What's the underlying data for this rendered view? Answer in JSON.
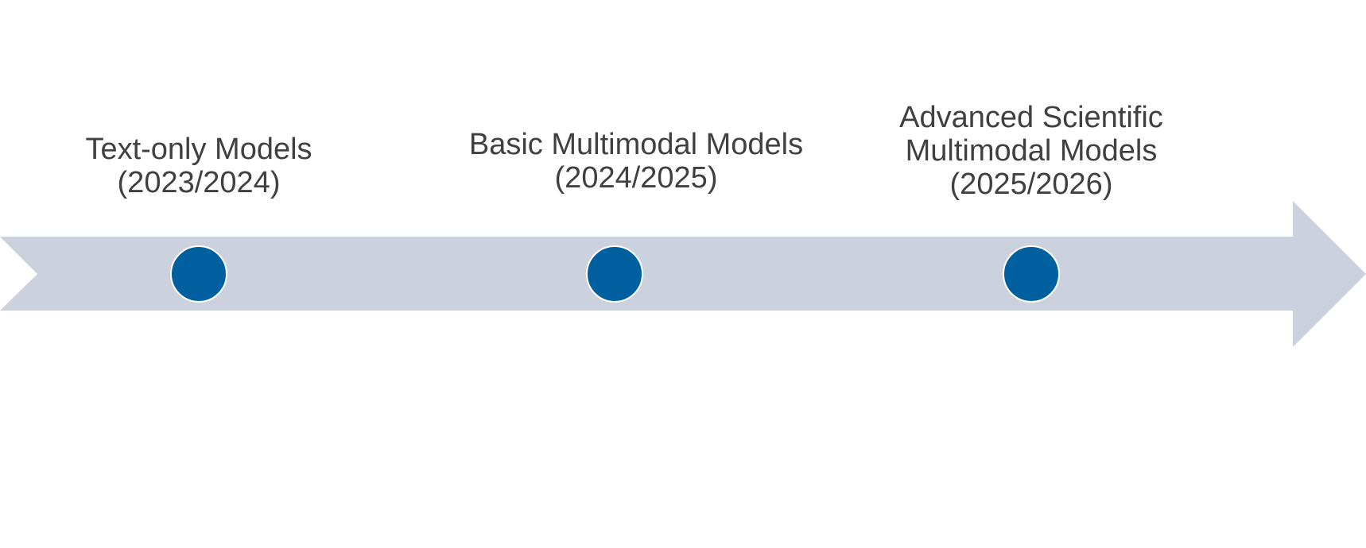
{
  "colors": {
    "arrow": "#cbd1dd",
    "marker": "#005f9e",
    "marker_outline": "#ffffff",
    "text": "#404040"
  },
  "milestones": [
    {
      "title_lines": [
        "Text-only Models"
      ],
      "period": "(2023/2024)"
    },
    {
      "title_lines": [
        "Basic Multimodal Models"
      ],
      "period": "(2024/2025)"
    },
    {
      "title_lines": [
        "Advanced Scientific",
        "Multimodal Models"
      ],
      "period": "(2025/2026)"
    }
  ]
}
